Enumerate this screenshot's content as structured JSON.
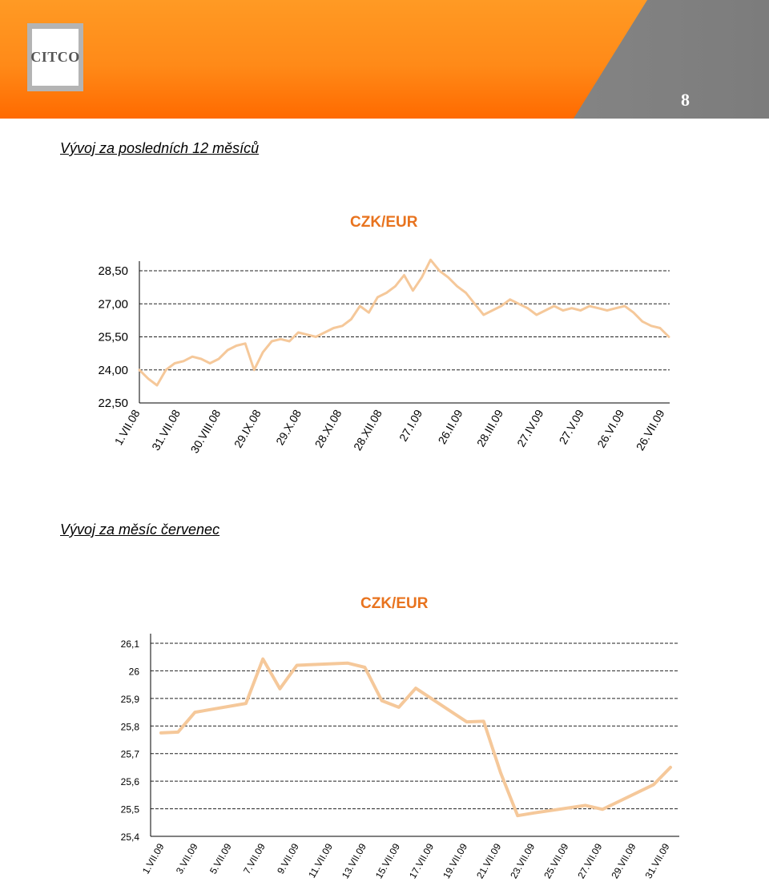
{
  "header": {
    "logo_text": "CITCO",
    "page_number": "8",
    "colors": {
      "orange": "#ff8a18",
      "gray": "#888888"
    }
  },
  "sections": [
    {
      "title": "Vývoj za posledních 12 měsíců"
    },
    {
      "title": "Vývoj za měsíc červenec"
    }
  ],
  "chart_data": [
    {
      "type": "line",
      "title": "CZK/EUR",
      "xlabel": "",
      "ylabel": "",
      "x_tick_labels": [
        "1.VII.08",
        "31.VII.08",
        "30.VIII.08",
        "29.IX.08",
        "29.X.08",
        "28.XI.08",
        "28.XII.08",
        "27.I.09",
        "26.II.09",
        "28.III.09",
        "27.IV.09",
        "27.V.09",
        "26.VI.09",
        "26.VII.09"
      ],
      "y_tick_labels": [
        "28,50",
        "27,00",
        "25,50",
        "24,00",
        "22,50"
      ],
      "ylim": [
        22.5,
        28.5
      ],
      "grid": true,
      "line_color": "#f5c89a",
      "series": [
        {
          "values": [
            24.0,
            23.6,
            23.3,
            24.0,
            24.3,
            24.4,
            24.6,
            24.5,
            24.3,
            24.5,
            24.9,
            25.1,
            25.2,
            24.0,
            24.8,
            25.3,
            25.4,
            25.3,
            25.7,
            25.6,
            25.5,
            25.7,
            25.9,
            26.0,
            26.3,
            26.9,
            26.6,
            27.3,
            27.5,
            27.8,
            28.3,
            27.6,
            28.2,
            29.0,
            28.5,
            28.2,
            27.8,
            27.5,
            27.0,
            26.5,
            26.7,
            26.9,
            27.2,
            27.0,
            26.8,
            26.5,
            26.7,
            26.9,
            26.7,
            26.8,
            26.7,
            26.9,
            26.8,
            26.7,
            26.8,
            26.9,
            26.6,
            26.2,
            26.0,
            25.9,
            25.5
          ]
        }
      ]
    },
    {
      "type": "line",
      "title": "CZK/EUR",
      "xlabel": "",
      "ylabel": "",
      "x_tick_labels": [
        "1.VII.09",
        "3.VII.09",
        "5.VII.09",
        "7.VII.09",
        "9.VII.09",
        "11.VII.09",
        "13.VII.09",
        "15.VII.09",
        "17.VII.09",
        "19.VII.09",
        "21.VII.09",
        "23.VII.09",
        "25.VII.09",
        "27.VII.09",
        "29.VII.09",
        "31.VII.09"
      ],
      "y_tick_labels": [
        "26,1",
        "26",
        "25,9",
        "25,8",
        "25,7",
        "25,6",
        "25,5",
        "25,4"
      ],
      "ylim": [
        25.4,
        26.1
      ],
      "grid": true,
      "line_color": "#f5c89a",
      "series": [
        {
          "x": [
            1,
            2,
            3,
            6,
            7,
            8,
            9,
            12,
            13,
            14,
            15,
            16,
            19,
            20,
            21,
            22,
            23,
            26,
            27,
            30,
            31
          ],
          "values": [
            25.775,
            25.778,
            25.85,
            25.882,
            26.043,
            25.935,
            26.02,
            26.028,
            26.013,
            25.892,
            25.868,
            25.937,
            25.815,
            25.817,
            25.63,
            25.475,
            25.485,
            25.512,
            25.498,
            25.587,
            25.65
          ]
        }
      ]
    }
  ]
}
